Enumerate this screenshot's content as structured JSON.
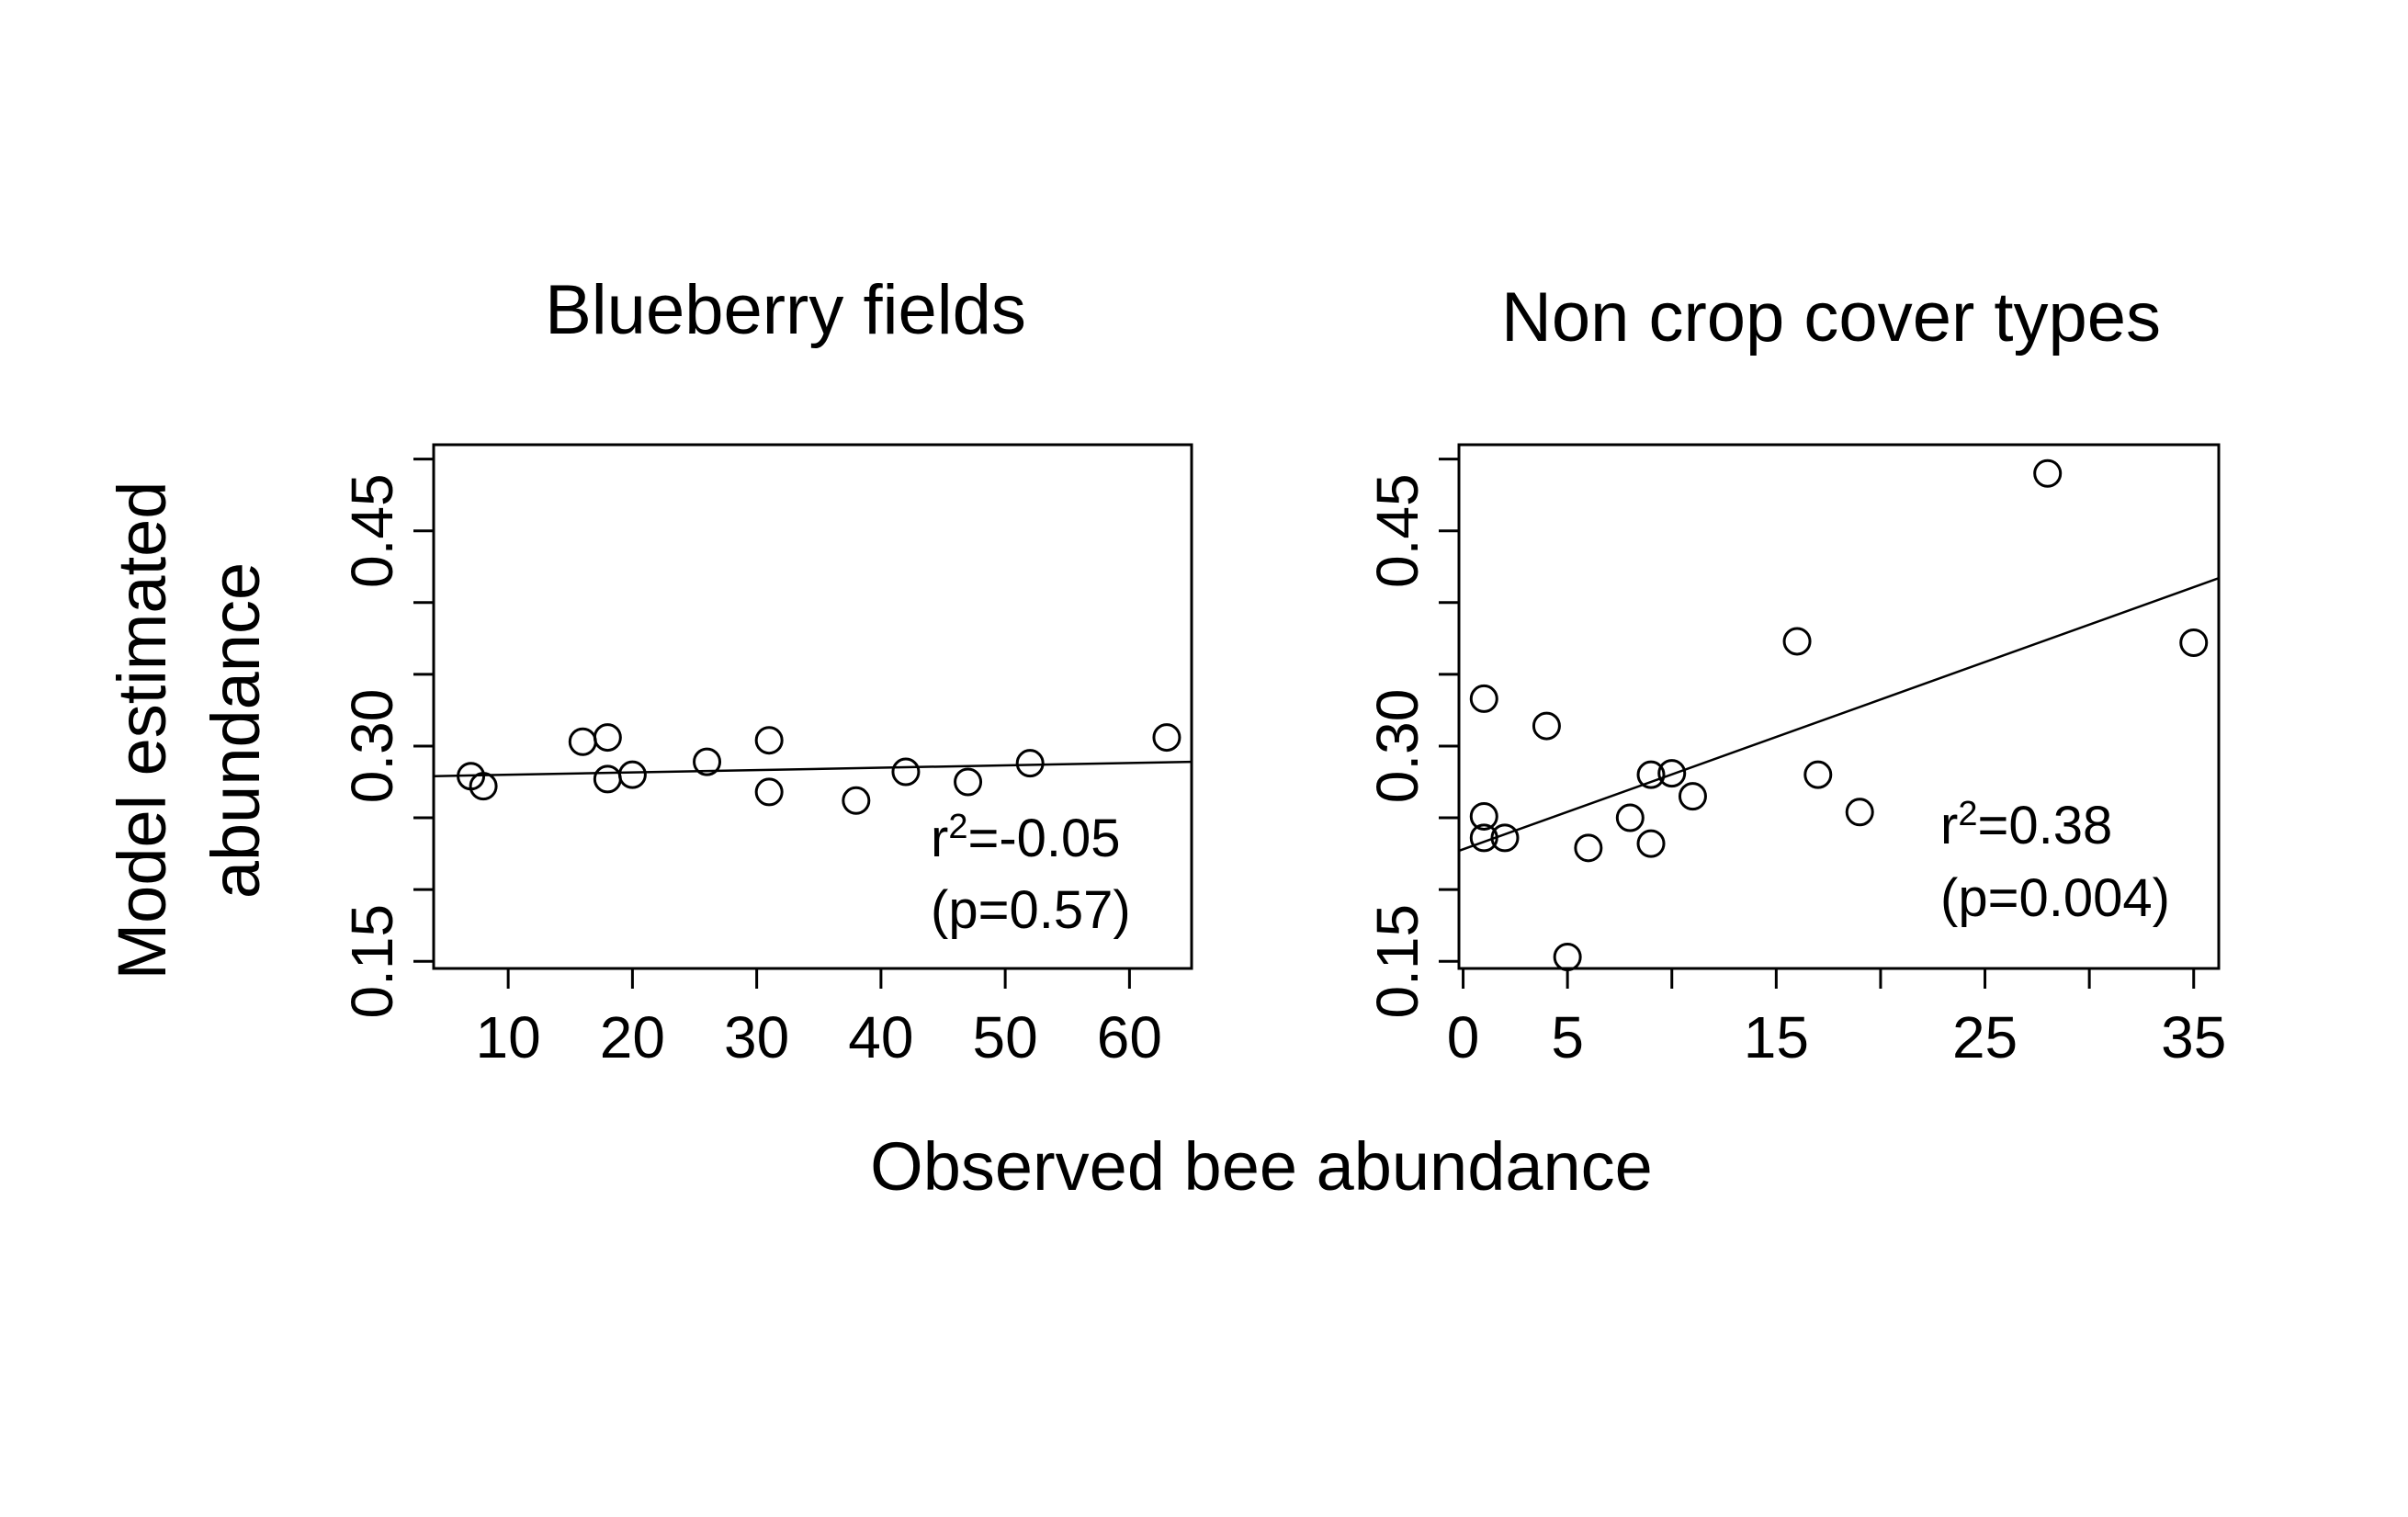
{
  "figure": {
    "ylabel_line1": "Model estimated",
    "ylabel_line2": "abundance",
    "xlabel": "Observed bee abundance"
  },
  "chart_data": [
    {
      "type": "scatter",
      "title": "Blueberry fields",
      "xlim": [
        4,
        65
      ],
      "ylim": [
        0.145,
        0.51
      ],
      "xticks": [
        10,
        20,
        30,
        40,
        50,
        60
      ],
      "yticks": [
        0.15,
        0.2,
        0.25,
        0.3,
        0.35,
        0.4,
        0.45,
        0.5
      ],
      "ytick_labels": [
        "0.15",
        "",
        "",
        "0.30",
        "",
        "",
        "0.45",
        ""
      ],
      "points": [
        {
          "x": 7,
          "y": 0.279
        },
        {
          "x": 8,
          "y": 0.272
        },
        {
          "x": 16,
          "y": 0.303
        },
        {
          "x": 18,
          "y": 0.306
        },
        {
          "x": 18,
          "y": 0.277
        },
        {
          "x": 20,
          "y": 0.28
        },
        {
          "x": 26,
          "y": 0.289
        },
        {
          "x": 31,
          "y": 0.304
        },
        {
          "x": 31,
          "y": 0.268
        },
        {
          "x": 38,
          "y": 0.262
        },
        {
          "x": 42,
          "y": 0.282
        },
        {
          "x": 47,
          "y": 0.275
        },
        {
          "x": 52,
          "y": 0.288
        },
        {
          "x": 63,
          "y": 0.306
        }
      ],
      "fit_line": {
        "x": [
          4,
          65
        ],
        "y": [
          0.279,
          0.289
        ]
      },
      "annotation": {
        "r2_prefix": "r",
        "r2_sup": "2",
        "r2_value": "=-0.05",
        "p_text": "(p=0.57)"
      }
    },
    {
      "type": "scatter",
      "title": "Non crop cover types",
      "xlim": [
        -0.2,
        36.2
      ],
      "ylim": [
        0.145,
        0.51
      ],
      "xticks": [
        0,
        5,
        10,
        15,
        20,
        25,
        30,
        35
      ],
      "xtick_labels": [
        "0",
        "5",
        "",
        "15",
        "",
        "25",
        "",
        "35"
      ],
      "yticks": [
        0.15,
        0.2,
        0.25,
        0.3,
        0.35,
        0.4,
        0.45,
        0.5
      ],
      "ytick_labels": [
        "0.15",
        "",
        "",
        "0.30",
        "",
        "",
        "0.45",
        ""
      ],
      "points": [
        {
          "x": 1,
          "y": 0.333
        },
        {
          "x": 1,
          "y": 0.251
        },
        {
          "x": 1,
          "y": 0.236
        },
        {
          "x": 2,
          "y": 0.236
        },
        {
          "x": 4,
          "y": 0.314
        },
        {
          "x": 5,
          "y": 0.153
        },
        {
          "x": 6,
          "y": 0.229
        },
        {
          "x": 8,
          "y": 0.25
        },
        {
          "x": 9,
          "y": 0.28
        },
        {
          "x": 9,
          "y": 0.232
        },
        {
          "x": 10,
          "y": 0.281
        },
        {
          "x": 11,
          "y": 0.265
        },
        {
          "x": 16,
          "y": 0.373
        },
        {
          "x": 17,
          "y": 0.28
        },
        {
          "x": 19,
          "y": 0.254
        },
        {
          "x": 28,
          "y": 0.49
        },
        {
          "x": 35,
          "y": 0.372
        }
      ],
      "fit_line": {
        "x": [
          -0.2,
          36.2
        ],
        "y": [
          0.227,
          0.417
        ]
      },
      "annotation": {
        "r2_prefix": "r",
        "r2_sup": "2",
        "r2_value": "=0.38",
        "p_text": "(p=0.004)"
      }
    }
  ]
}
